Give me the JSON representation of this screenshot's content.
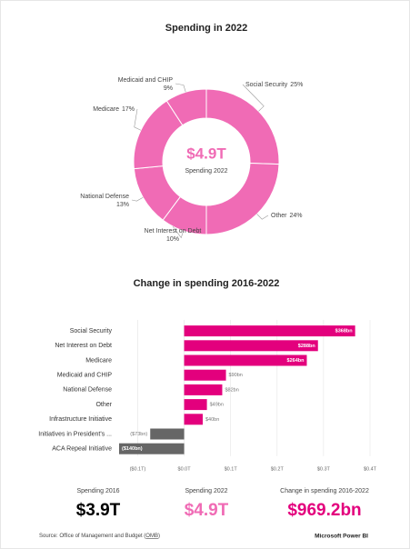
{
  "chart_data": [
    {
      "type": "donut",
      "title": "Spending in 2022",
      "categories": [
        "Social Security",
        "Other",
        "Net Interest on Debt",
        "National Defense",
        "Medicare",
        "Medicaid and CHIP"
      ],
      "values": [
        25,
        24,
        10,
        13,
        17,
        9
      ],
      "value_labels": [
        "25%",
        "24%",
        "10%",
        "13%",
        "17%",
        "9%"
      ],
      "color": "#f06bb5",
      "center_value": "$4.9T",
      "center_label": "Spending 2022"
    },
    {
      "type": "hbar",
      "title": "Change in spending 2016-2022",
      "categories": [
        "Social Security",
        "Net Interest on Debt",
        "Medicare",
        "Medicaid and CHIP",
        "National Defense",
        "Other",
        "Infrastructure Initiative",
        "Initiatives in President's ...",
        "ACA Repeal Initiative"
      ],
      "values": [
        368,
        288,
        264,
        90,
        82,
        49,
        40,
        -73,
        -140
      ],
      "value_labels": [
        "$368bn",
        "$288bn",
        "$264bn",
        "$90bn",
        "$82bn",
        "$49bn",
        "$40bn",
        "($73bn)",
        "($140bn)"
      ],
      "color": "#e3007d",
      "negative_color": "#666666",
      "xlim": [
        -140,
        400
      ],
      "xticks": [
        {
          "value": -100,
          "label": "($0.1T)"
        },
        {
          "value": 0,
          "label": "$0.0T"
        },
        {
          "value": 100,
          "label": "$0.1T"
        },
        {
          "value": 200,
          "label": "$0.2T"
        },
        {
          "value": 300,
          "label": "$0.3T"
        },
        {
          "value": 400,
          "label": "$0.4T"
        }
      ],
      "grid": true
    }
  ],
  "kpis": [
    {
      "label": "Spending 2016",
      "value": "$3.9T",
      "color": "#000000"
    },
    {
      "label": "Spending 2022",
      "value": "$4.9T",
      "color": "#f06bb5"
    },
    {
      "label": "Change in spending 2016-2022",
      "value": "$969.2bn",
      "color": "#e3007d"
    }
  ],
  "source": {
    "text": "Source: Office of Management and Budget (",
    "link": "OMB",
    "end": ")"
  },
  "brand": "Microsoft Power BI"
}
